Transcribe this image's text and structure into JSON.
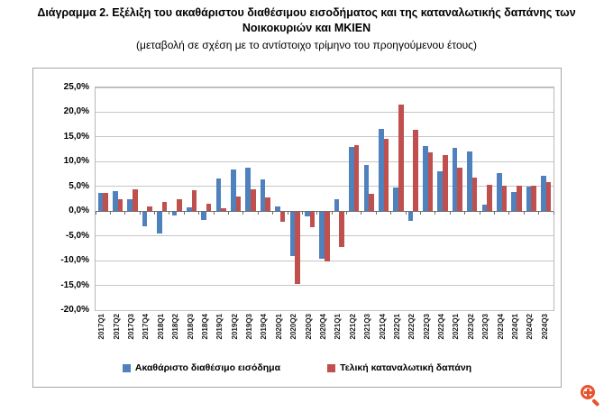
{
  "page": {
    "title_line1": "Διάγραμμα 2. Εξέλιξη του ακαθάριστου διαθέσιμου εισοδήματος και της καταναλωτικής δαπάνης των",
    "title_line2": "Νοικοκυριών και ΜΚΙΕΝ",
    "subtitle": "(μεταβολή σε σχέση με το αντίστοιχο τρίμηνο του προηγούμενου έτους)"
  },
  "chart_data": {
    "type": "bar",
    "categories": [
      "2017Q1",
      "2017Q2",
      "2017Q3",
      "2017Q4",
      "2018Q1",
      "2018Q2",
      "2018Q3",
      "2018Q4",
      "2019Q1",
      "2019Q2",
      "2019Q3",
      "2019Q4",
      "2020Q1",
      "2020Q2",
      "2020Q3",
      "2020Q4",
      "2021Q1",
      "2021Q2",
      "2021Q3",
      "2021Q4",
      "2022Q1",
      "2022Q2",
      "2022Q3",
      "2022Q4",
      "2023Q1",
      "2023Q2",
      "2023Q3",
      "2023Q4",
      "2024Q1",
      "2024Q2",
      "2024Q3"
    ],
    "series": [
      {
        "name": "Ακαθάριστο διαθέσιμο εισόδημα",
        "color": "#4f81bd",
        "values": [
          3.7,
          4.1,
          2.5,
          -2.9,
          -4.3,
          -0.7,
          0.8,
          -1.6,
          6.6,
          8.5,
          8.7,
          6.4,
          1.0,
          -8.9,
          -0.9,
          -9.5,
          2.4,
          12.9,
          9.4,
          16.6,
          4.8,
          -1.8,
          13.2,
          8.1,
          12.8,
          12.1,
          1.4,
          7.7,
          3.9,
          5.0,
          7.1
        ]
      },
      {
        "name": "Τελική καταναλωτική δαπάνη",
        "color": "#c0504d",
        "values": [
          3.6,
          2.5,
          4.4,
          1.0,
          1.8,
          2.4,
          4.2,
          1.5,
          0.6,
          3.0,
          4.4,
          2.7,
          -1.9,
          -14.6,
          -3.0,
          -9.9,
          -7.0,
          13.4,
          3.5,
          14.6,
          21.6,
          16.5,
          11.8,
          11.3,
          8.7,
          6.8,
          5.4,
          5.2,
          5.2,
          5.2,
          5.8
        ]
      }
    ],
    "ylim": [
      -20,
      25
    ],
    "ytick_step": 5,
    "ytick_labels": [
      "25,0%",
      "20,0%",
      "15,0%",
      "10,0%",
      "5,0%",
      "0,0%",
      "-5,0%",
      "-10,0%",
      "-15,0%",
      "-20,0%"
    ],
    "grid": true,
    "legend_position": "bottom",
    "bar_colors": {
      "income": "#4f81bd",
      "consumption": "#c0504d"
    }
  },
  "icons": {
    "zoom_icon": "magnifier-plus-icon",
    "zoom_icon_color": "#e8532f"
  }
}
